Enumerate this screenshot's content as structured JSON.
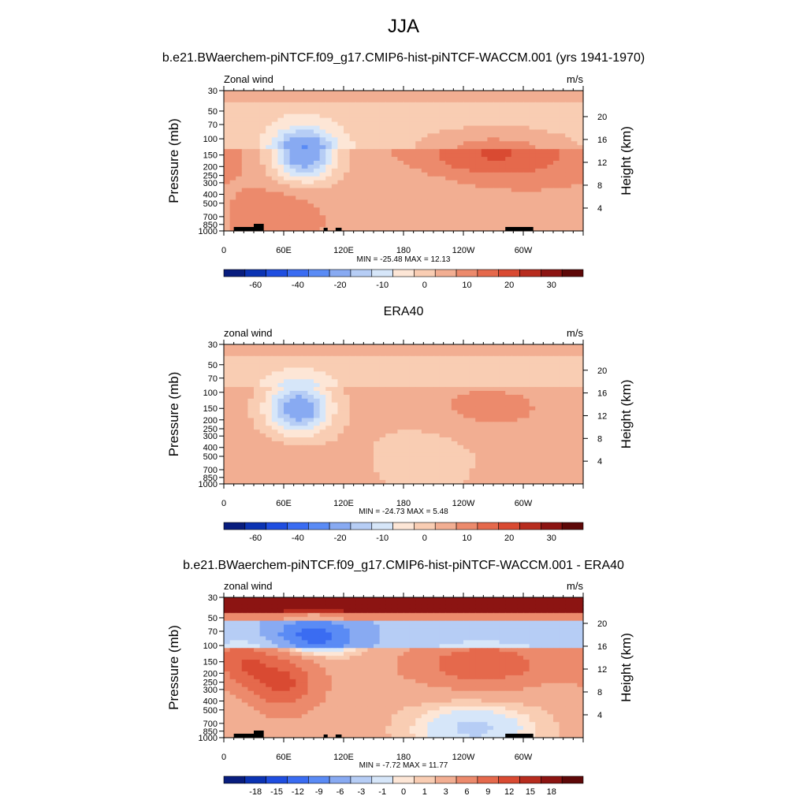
{
  "page_title": "JJA",
  "chart_data": [
    {
      "type": "heatmap",
      "title": "b.e21.BWaerchem-piNTCF.f09_g17.CMIP6-hist-piNTCF-WACCM.001 (yrs 1941-1970)",
      "left_label": "Zonal wind",
      "right_label": "m/s",
      "ylabel": "Pressure (mb)",
      "y2label": "Height (km)",
      "xticks": [
        "0",
        "60E",
        "120E",
        "180",
        "120W",
        "60W"
      ],
      "yticks": [
        "30",
        "50",
        "70",
        "100",
        "150",
        "200",
        "250",
        "300",
        "400",
        "500",
        "700",
        "850",
        "1000"
      ],
      "y2ticks": [
        "4",
        "8",
        "12",
        "16",
        "20"
      ],
      "stats": "MIN = -25.48  MAX =  12.13",
      "colorbar_levels": [
        -70,
        -60,
        -50,
        -40,
        -30,
        -20,
        -15,
        -10,
        -5,
        0,
        5,
        10,
        15,
        20,
        25,
        30,
        35
      ],
      "colorbar_labels": [
        "-60",
        "-40",
        "-20",
        "-10",
        "0",
        "10",
        "20",
        "30"
      ],
      "colors": [
        "#081d7e",
        "#0b33b3",
        "#1f4ee0",
        "#3a6cf2",
        "#5a8bf5",
        "#88aaf2",
        "#b6cdf5",
        "#d6e6f9",
        "#fde6d6",
        "#f9cdb3",
        "#f2ae92",
        "#ec8a6c",
        "#e5694c",
        "#d94a32",
        "#b72c1e",
        "#8c1412",
        "#5e0808"
      ],
      "min": -25.48,
      "max": 12.13
    },
    {
      "type": "heatmap",
      "title": "ERA40",
      "left_label": "zonal wind",
      "right_label": "m/s",
      "ylabel": "Pressure (mb)",
      "y2label": "Height (km)",
      "xticks": [
        "0",
        "60E",
        "120E",
        "180",
        "120W",
        "60W"
      ],
      "yticks": [
        "30",
        "50",
        "70",
        "100",
        "150",
        "200",
        "250",
        "300",
        "400",
        "500",
        "700",
        "850",
        "1000"
      ],
      "y2ticks": [
        "4",
        "8",
        "12",
        "16",
        "20"
      ],
      "stats": "MIN = -24.73  MAX =   5.48",
      "colorbar_levels": [
        -70,
        -60,
        -50,
        -40,
        -30,
        -20,
        -15,
        -10,
        -5,
        0,
        5,
        10,
        15,
        20,
        25,
        30,
        35
      ],
      "colorbar_labels": [
        "-60",
        "-40",
        "-20",
        "-10",
        "0",
        "10",
        "20",
        "30"
      ],
      "colors": [
        "#081d7e",
        "#0b33b3",
        "#1f4ee0",
        "#3a6cf2",
        "#5a8bf5",
        "#88aaf2",
        "#b6cdf5",
        "#d6e6f9",
        "#fde6d6",
        "#f9cdb3",
        "#f2ae92",
        "#ec8a6c",
        "#e5694c",
        "#d94a32",
        "#b72c1e",
        "#8c1412",
        "#5e0808"
      ],
      "min": -24.73,
      "max": 5.48
    },
    {
      "type": "heatmap",
      "title": "b.e21.BWaerchem-piNTCF.f09_g17.CMIP6-hist-piNTCF-WACCM.001 - ERA40",
      "left_label": "zonal wind",
      "right_label": "m/s",
      "ylabel": "Pressure (mb)",
      "y2label": "Height (km)",
      "xticks": [
        "0",
        "60E",
        "120E",
        "180",
        "120W",
        "60W"
      ],
      "yticks": [
        "30",
        "50",
        "70",
        "100",
        "150",
        "200",
        "250",
        "300",
        "400",
        "500",
        "700",
        "850",
        "1000"
      ],
      "y2ticks": [
        "4",
        "8",
        "12",
        "16",
        "20"
      ],
      "stats": "MIN =  -7.72  MAX =  11.77",
      "colorbar_levels": [
        -21,
        -18,
        -15,
        -12,
        -9,
        -6,
        -3,
        -1,
        0,
        1,
        3,
        6,
        9,
        12,
        15,
        18,
        21
      ],
      "colorbar_labels": [
        "-18",
        "-15",
        "-12",
        "-9",
        "-6",
        "-3",
        "-1",
        "0",
        "1",
        "3",
        "6",
        "9",
        "12",
        "15",
        "18"
      ],
      "colors": [
        "#081d7e",
        "#0b33b3",
        "#1f4ee0",
        "#3a6cf2",
        "#5a8bf5",
        "#88aaf2",
        "#b6cdf5",
        "#d6e6f9",
        "#fde6d6",
        "#f9cdb3",
        "#f2ae92",
        "#ec8a6c",
        "#e5694c",
        "#d94a32",
        "#b72c1e",
        "#8c1412",
        "#5e0808"
      ],
      "min": -7.72,
      "max": 11.77
    }
  ]
}
